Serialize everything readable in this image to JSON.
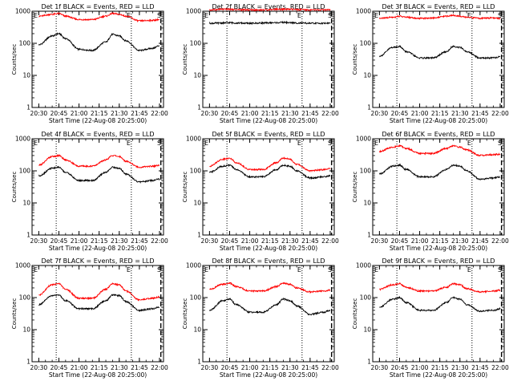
{
  "figure": {
    "x_ticks": [
      "20:30",
      "20:45",
      "21:00",
      "21:15",
      "21:30",
      "21:45",
      "22:00"
    ],
    "x_title": "Start Time (22-Aug-08 20:25:00)",
    "y_title": "Counts/sec",
    "y_ticks": [
      "1",
      "10",
      "100",
      "1000"
    ],
    "markers": {
      "start": "E",
      "end": "E",
      "right": "S"
    },
    "colors": {
      "events": "#000000",
      "lld": "#ff0000",
      "axes": "#000000"
    }
  },
  "chart_data": [
    {
      "type": "line",
      "title": "Det 1f BLACK = Events, RED = LLD",
      "xlabel": "Start Time (22-Aug-08 20:25:00)",
      "ylabel": "Counts/sec",
      "yscale": "log",
      "ylim": [
        1,
        1000
      ],
      "xlim": [
        "20:25",
        "22:03"
      ],
      "x": [
        "20:30",
        "20:40",
        "20:45",
        "20:50",
        "21:00",
        "21:10",
        "21:20",
        "21:25",
        "21:30",
        "21:35",
        "21:45",
        "21:55",
        "22:00"
      ],
      "series": [
        {
          "name": "BLACK = Events",
          "values": [
            90,
            170,
            200,
            140,
            65,
            60,
            110,
            190,
            170,
            120,
            60,
            70,
            85
          ]
        },
        {
          "name": "RED = LLD",
          "values": [
            700,
            800,
            850,
            700,
            550,
            550,
            700,
            850,
            800,
            700,
            500,
            520,
            550
          ]
        }
      ]
    },
    {
      "type": "line",
      "title": "Det 2f BLACK = Events, RED = LLD",
      "xlabel": "Start Time (22-Aug-08 20:25:00)",
      "ylabel": "Counts/sec",
      "yscale": "log",
      "ylim": [
        1,
        1000
      ],
      "xlim": [
        "20:25",
        "22:03"
      ],
      "x": [
        "20:30",
        "20:40",
        "20:45",
        "20:50",
        "21:00",
        "21:10",
        "21:20",
        "21:25",
        "21:30",
        "21:35",
        "21:45",
        "21:55",
        "22:00"
      ],
      "series": [
        {
          "name": "BLACK = Events",
          "values": [
            420,
            430,
            440,
            430,
            420,
            430,
            440,
            450,
            440,
            430,
            420,
            420,
            430
          ]
        },
        {
          "name": "RED = LLD",
          "values": [
            1100,
            1150,
            1150,
            1120,
            1100,
            1100,
            1150,
            1150,
            1150,
            1120,
            1100,
            1100,
            1100
          ]
        }
      ]
    },
    {
      "type": "line",
      "title": "Det 3f BLACK = Events, RED = LLD",
      "xlabel": "Start Time (22-Aug-08 20:25:00)",
      "ylabel": "Counts/sec",
      "yscale": "log",
      "ylim": [
        1,
        1000
      ],
      "xlim": [
        "20:25",
        "22:03"
      ],
      "x": [
        "20:30",
        "20:40",
        "20:45",
        "20:50",
        "21:00",
        "21:10",
        "21:20",
        "21:25",
        "21:30",
        "21:35",
        "21:45",
        "21:55",
        "22:00"
      ],
      "series": [
        {
          "name": "BLACK = Events",
          "values": [
            40,
            75,
            80,
            55,
            35,
            35,
            55,
            80,
            75,
            55,
            35,
            35,
            38
          ]
        },
        {
          "name": "RED = LLD",
          "values": [
            600,
            650,
            700,
            650,
            600,
            620,
            700,
            750,
            700,
            650,
            600,
            620,
            600
          ]
        }
      ]
    },
    {
      "type": "line",
      "title": "Det 4f BLACK = Events, RED = LLD",
      "xlabel": "Start Time (22-Aug-08 20:25:00)",
      "ylabel": "Counts/sec",
      "yscale": "log",
      "ylim": [
        1,
        1000
      ],
      "xlim": [
        "20:25",
        "22:03"
      ],
      "x": [
        "20:30",
        "20:40",
        "20:45",
        "20:50",
        "21:00",
        "21:10",
        "21:20",
        "21:25",
        "21:30",
        "21:35",
        "21:45",
        "21:55",
        "22:00"
      ],
      "series": [
        {
          "name": "BLACK = Events",
          "values": [
            70,
            120,
            130,
            90,
            50,
            50,
            90,
            130,
            120,
            80,
            45,
            50,
            55
          ]
        },
        {
          "name": "RED = LLD",
          "values": [
            150,
            280,
            300,
            220,
            140,
            140,
            220,
            300,
            280,
            200,
            130,
            140,
            150
          ]
        }
      ]
    },
    {
      "type": "line",
      "title": "Det 5f BLACK = Events, RED = LLD",
      "xlabel": "Start Time (22-Aug-08 20:25:00)",
      "ylabel": "Counts/sec",
      "yscale": "log",
      "ylim": [
        1,
        1000
      ],
      "xlim": [
        "20:25",
        "22:03"
      ],
      "x": [
        "20:30",
        "20:40",
        "20:45",
        "20:50",
        "21:00",
        "21:10",
        "21:20",
        "21:25",
        "21:30",
        "21:35",
        "21:45",
        "21:55",
        "22:00"
      ],
      "series": [
        {
          "name": "BLACK = Events",
          "values": [
            90,
            140,
            150,
            110,
            65,
            65,
            110,
            150,
            140,
            100,
            60,
            65,
            70
          ]
        },
        {
          "name": "RED = LLD",
          "values": [
            140,
            230,
            250,
            180,
            110,
            110,
            180,
            250,
            230,
            160,
            100,
            110,
            120
          ]
        }
      ]
    },
    {
      "type": "line",
      "title": "Det 6f BLACK = Events, RED = LLD",
      "xlabel": "Start Time (22-Aug-08 20:25:00)",
      "ylabel": "Counts/sec",
      "yscale": "log",
      "ylim": [
        1,
        1000
      ],
      "xlim": [
        "20:25",
        "22:03"
      ],
      "x": [
        "20:30",
        "20:40",
        "20:45",
        "20:50",
        "21:00",
        "21:10",
        "21:20",
        "21:25",
        "21:30",
        "21:35",
        "21:45",
        "21:55",
        "22:00"
      ],
      "series": [
        {
          "name": "BLACK = Events",
          "values": [
            80,
            140,
            150,
            110,
            65,
            65,
            110,
            150,
            140,
            100,
            55,
            60,
            65
          ]
        },
        {
          "name": "RED = LLD",
          "values": [
            400,
            550,
            600,
            500,
            350,
            350,
            500,
            600,
            550,
            450,
            300,
            320,
            330
          ]
        }
      ]
    },
    {
      "type": "line",
      "title": "Det 7f BLACK = Events, RED = LLD",
      "xlabel": "Start Time (22-Aug-08 20:25:00)",
      "ylabel": "Counts/sec",
      "yscale": "log",
      "ylim": [
        1,
        1000
      ],
      "xlim": [
        "20:25",
        "22:03"
      ],
      "x": [
        "20:30",
        "20:40",
        "20:45",
        "20:50",
        "21:00",
        "21:10",
        "21:20",
        "21:25",
        "21:30",
        "21:35",
        "21:45",
        "21:55",
        "22:00"
      ],
      "series": [
        {
          "name": "BLACK = Events",
          "values": [
            60,
            115,
            120,
            80,
            45,
            45,
            80,
            120,
            115,
            75,
            40,
            45,
            50
          ]
        },
        {
          "name": "RED = LLD",
          "values": [
            120,
            250,
            270,
            180,
            95,
            95,
            180,
            270,
            250,
            160,
            85,
            95,
            105
          ]
        }
      ]
    },
    {
      "type": "line",
      "title": "Det 8f BLACK = Events, RED = LLD",
      "xlabel": "Start Time (22-Aug-08 20:25:00)",
      "ylabel": "Counts/sec",
      "yscale": "log",
      "ylim": [
        1,
        1000
      ],
      "xlim": [
        "20:25",
        "22:03"
      ],
      "x": [
        "20:30",
        "20:40",
        "20:45",
        "20:50",
        "21:00",
        "21:10",
        "21:20",
        "21:25",
        "21:30",
        "21:35",
        "21:45",
        "21:55",
        "22:00"
      ],
      "series": [
        {
          "name": "BLACK = Events",
          "values": [
            40,
            80,
            90,
            60,
            35,
            35,
            60,
            90,
            80,
            55,
            30,
            35,
            40
          ]
        },
        {
          "name": "RED = LLD",
          "values": [
            180,
            260,
            280,
            220,
            160,
            160,
            220,
            280,
            260,
            200,
            150,
            160,
            170
          ]
        }
      ]
    },
    {
      "type": "line",
      "title": "Det 9f BLACK = Events, RED = LLD",
      "xlabel": "Start Time (22-Aug-08 20:25:00)",
      "ylabel": "Counts/sec",
      "yscale": "log",
      "ylim": [
        1,
        1000
      ],
      "xlim": [
        "20:25",
        "22:03"
      ],
      "x": [
        "20:30",
        "20:40",
        "20:45",
        "20:50",
        "21:00",
        "21:10",
        "21:20",
        "21:25",
        "21:30",
        "21:35",
        "21:45",
        "21:55",
        "22:00"
      ],
      "series": [
        {
          "name": "BLACK = Events",
          "values": [
            50,
            90,
            100,
            70,
            40,
            40,
            70,
            100,
            90,
            60,
            38,
            40,
            45
          ]
        },
        {
          "name": "RED = LLD",
          "values": [
            180,
            250,
            270,
            210,
            160,
            160,
            210,
            270,
            250,
            190,
            150,
            160,
            170
          ]
        }
      ]
    }
  ]
}
